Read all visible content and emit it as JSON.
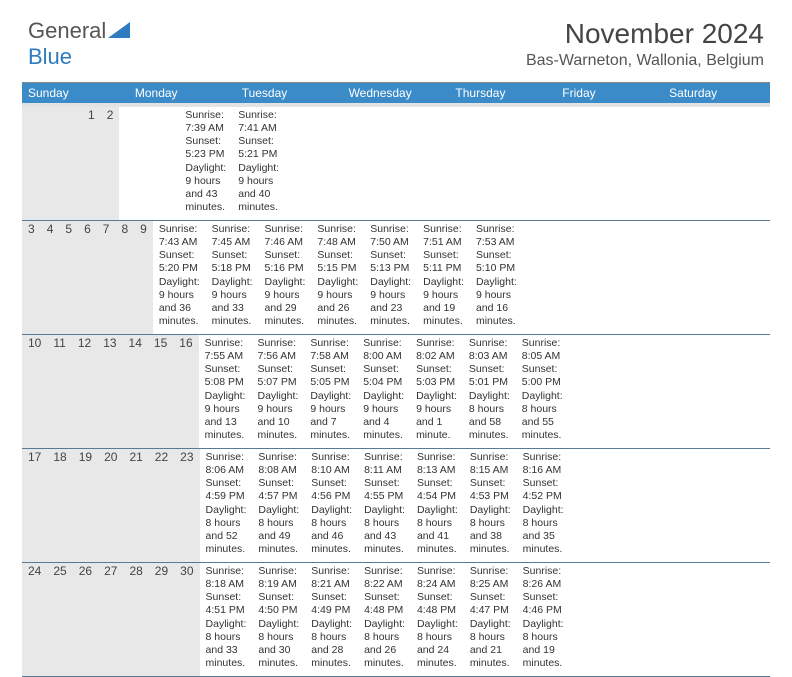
{
  "logo": {
    "text1": "General",
    "text2": "Blue",
    "shape_color": "#2f7bbf",
    "text1_color": "#555555"
  },
  "title": "November 2024",
  "location": "Bas-Warneton, Wallonia, Belgium",
  "colors": {
    "header_bar": "#3b8bc9",
    "daynum_bg": "#e8e8e9",
    "border": "#5a7a94",
    "text": "#333333"
  },
  "daysOfWeek": [
    "Sunday",
    "Monday",
    "Tuesday",
    "Wednesday",
    "Thursday",
    "Friday",
    "Saturday"
  ],
  "weeks": [
    [
      {
        "n": "",
        "sr": "",
        "ss": "",
        "dl": ""
      },
      {
        "n": "",
        "sr": "",
        "ss": "",
        "dl": ""
      },
      {
        "n": "",
        "sr": "",
        "ss": "",
        "dl": ""
      },
      {
        "n": "",
        "sr": "",
        "ss": "",
        "dl": ""
      },
      {
        "n": "",
        "sr": "",
        "ss": "",
        "dl": ""
      },
      {
        "n": "1",
        "sr": "Sunrise: 7:39 AM",
        "ss": "Sunset: 5:23 PM",
        "dl": "Daylight: 9 hours and 43 minutes."
      },
      {
        "n": "2",
        "sr": "Sunrise: 7:41 AM",
        "ss": "Sunset: 5:21 PM",
        "dl": "Daylight: 9 hours and 40 minutes."
      }
    ],
    [
      {
        "n": "3",
        "sr": "Sunrise: 7:43 AM",
        "ss": "Sunset: 5:20 PM",
        "dl": "Daylight: 9 hours and 36 minutes."
      },
      {
        "n": "4",
        "sr": "Sunrise: 7:45 AM",
        "ss": "Sunset: 5:18 PM",
        "dl": "Daylight: 9 hours and 33 minutes."
      },
      {
        "n": "5",
        "sr": "Sunrise: 7:46 AM",
        "ss": "Sunset: 5:16 PM",
        "dl": "Daylight: 9 hours and 29 minutes."
      },
      {
        "n": "6",
        "sr": "Sunrise: 7:48 AM",
        "ss": "Sunset: 5:15 PM",
        "dl": "Daylight: 9 hours and 26 minutes."
      },
      {
        "n": "7",
        "sr": "Sunrise: 7:50 AM",
        "ss": "Sunset: 5:13 PM",
        "dl": "Daylight: 9 hours and 23 minutes."
      },
      {
        "n": "8",
        "sr": "Sunrise: 7:51 AM",
        "ss": "Sunset: 5:11 PM",
        "dl": "Daylight: 9 hours and 19 minutes."
      },
      {
        "n": "9",
        "sr": "Sunrise: 7:53 AM",
        "ss": "Sunset: 5:10 PM",
        "dl": "Daylight: 9 hours and 16 minutes."
      }
    ],
    [
      {
        "n": "10",
        "sr": "Sunrise: 7:55 AM",
        "ss": "Sunset: 5:08 PM",
        "dl": "Daylight: 9 hours and 13 minutes."
      },
      {
        "n": "11",
        "sr": "Sunrise: 7:56 AM",
        "ss": "Sunset: 5:07 PM",
        "dl": "Daylight: 9 hours and 10 minutes."
      },
      {
        "n": "12",
        "sr": "Sunrise: 7:58 AM",
        "ss": "Sunset: 5:05 PM",
        "dl": "Daylight: 9 hours and 7 minutes."
      },
      {
        "n": "13",
        "sr": "Sunrise: 8:00 AM",
        "ss": "Sunset: 5:04 PM",
        "dl": "Daylight: 9 hours and 4 minutes."
      },
      {
        "n": "14",
        "sr": "Sunrise: 8:02 AM",
        "ss": "Sunset: 5:03 PM",
        "dl": "Daylight: 9 hours and 1 minute."
      },
      {
        "n": "15",
        "sr": "Sunrise: 8:03 AM",
        "ss": "Sunset: 5:01 PM",
        "dl": "Daylight: 8 hours and 58 minutes."
      },
      {
        "n": "16",
        "sr": "Sunrise: 8:05 AM",
        "ss": "Sunset: 5:00 PM",
        "dl": "Daylight: 8 hours and 55 minutes."
      }
    ],
    [
      {
        "n": "17",
        "sr": "Sunrise: 8:06 AM",
        "ss": "Sunset: 4:59 PM",
        "dl": "Daylight: 8 hours and 52 minutes."
      },
      {
        "n": "18",
        "sr": "Sunrise: 8:08 AM",
        "ss": "Sunset: 4:57 PM",
        "dl": "Daylight: 8 hours and 49 minutes."
      },
      {
        "n": "19",
        "sr": "Sunrise: 8:10 AM",
        "ss": "Sunset: 4:56 PM",
        "dl": "Daylight: 8 hours and 46 minutes."
      },
      {
        "n": "20",
        "sr": "Sunrise: 8:11 AM",
        "ss": "Sunset: 4:55 PM",
        "dl": "Daylight: 8 hours and 43 minutes."
      },
      {
        "n": "21",
        "sr": "Sunrise: 8:13 AM",
        "ss": "Sunset: 4:54 PM",
        "dl": "Daylight: 8 hours and 41 minutes."
      },
      {
        "n": "22",
        "sr": "Sunrise: 8:15 AM",
        "ss": "Sunset: 4:53 PM",
        "dl": "Daylight: 8 hours and 38 minutes."
      },
      {
        "n": "23",
        "sr": "Sunrise: 8:16 AM",
        "ss": "Sunset: 4:52 PM",
        "dl": "Daylight: 8 hours and 35 minutes."
      }
    ],
    [
      {
        "n": "24",
        "sr": "Sunrise: 8:18 AM",
        "ss": "Sunset: 4:51 PM",
        "dl": "Daylight: 8 hours and 33 minutes."
      },
      {
        "n": "25",
        "sr": "Sunrise: 8:19 AM",
        "ss": "Sunset: 4:50 PM",
        "dl": "Daylight: 8 hours and 30 minutes."
      },
      {
        "n": "26",
        "sr": "Sunrise: 8:21 AM",
        "ss": "Sunset: 4:49 PM",
        "dl": "Daylight: 8 hours and 28 minutes."
      },
      {
        "n": "27",
        "sr": "Sunrise: 8:22 AM",
        "ss": "Sunset: 4:48 PM",
        "dl": "Daylight: 8 hours and 26 minutes."
      },
      {
        "n": "28",
        "sr": "Sunrise: 8:24 AM",
        "ss": "Sunset: 4:48 PM",
        "dl": "Daylight: 8 hours and 24 minutes."
      },
      {
        "n": "29",
        "sr": "Sunrise: 8:25 AM",
        "ss": "Sunset: 4:47 PM",
        "dl": "Daylight: 8 hours and 21 minutes."
      },
      {
        "n": "30",
        "sr": "Sunrise: 8:26 AM",
        "ss": "Sunset: 4:46 PM",
        "dl": "Daylight: 8 hours and 19 minutes."
      }
    ]
  ]
}
